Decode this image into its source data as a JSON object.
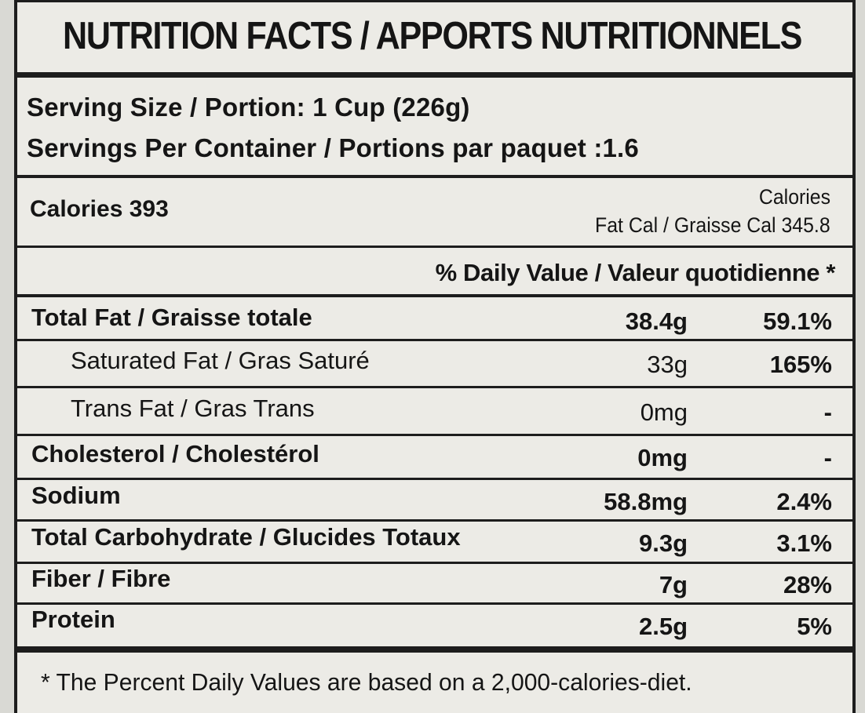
{
  "title": "NUTRITION FACTS / APPORTS NUTRITIONNELS",
  "serving": {
    "size": "Serving Size / Portion: 1 Cup (226g)",
    "per_container": "Servings Per Container / Portions par paquet :1.6"
  },
  "calories": {
    "main": "Calories 393",
    "right_label": "Calories",
    "fat_cal": "Fat Cal / Graisse Cal 345.8"
  },
  "daily_value_header": "% Daily Value / Valeur quotidienne *",
  "nutrients": [
    {
      "name": "Total Fat / Graisse totale",
      "amount": "38.4g",
      "percent": "59.1%"
    },
    {
      "name": "Saturated Fat / Gras Saturé",
      "amount": "33g",
      "percent": "165%"
    },
    {
      "name": "Trans Fat / Gras Trans",
      "amount": "0mg",
      "percent": "-"
    },
    {
      "name": "Cholesterol / Cholestérol",
      "amount": "0mg",
      "percent": "-"
    },
    {
      "name": "Sodium",
      "amount": "58.8mg",
      "percent": "2.4%"
    },
    {
      "name": "Total Carbohydrate / Glucides Totaux",
      "amount": "9.3g",
      "percent": "3.1%"
    },
    {
      "name": "Fiber / Fibre",
      "amount": "7g",
      "percent": "28%"
    },
    {
      "name": "Protein",
      "amount": "2.5g",
      "percent": "5%"
    }
  ],
  "footnote": "* The Percent Daily Values are based on a 2,000-calories-diet."
}
